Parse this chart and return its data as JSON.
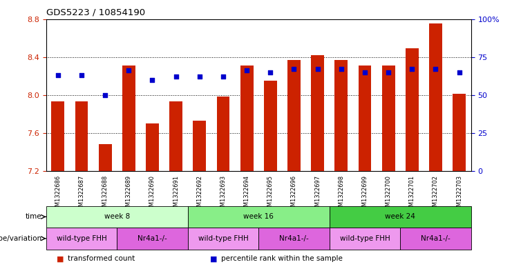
{
  "title": "GDS5223 / 10854190",
  "samples": [
    "GSM1322686",
    "GSM1322687",
    "GSM1322688",
    "GSM1322689",
    "GSM1322690",
    "GSM1322691",
    "GSM1322692",
    "GSM1322693",
    "GSM1322694",
    "GSM1322695",
    "GSM1322696",
    "GSM1322697",
    "GSM1322698",
    "GSM1322699",
    "GSM1322700",
    "GSM1322701",
    "GSM1322702",
    "GSM1322703"
  ],
  "bar_values": [
    7.93,
    7.93,
    7.48,
    8.31,
    7.7,
    7.93,
    7.73,
    7.98,
    8.31,
    8.15,
    8.37,
    8.42,
    8.37,
    8.31,
    8.31,
    8.49,
    8.75,
    8.01
  ],
  "blue_dot_values": [
    63,
    63,
    50,
    66,
    60,
    62,
    62,
    62,
    66,
    65,
    67,
    67,
    67,
    65,
    65,
    67,
    67,
    65
  ],
  "ylim_left": [
    7.2,
    8.8
  ],
  "ylim_right": [
    0,
    100
  ],
  "yticks_left": [
    7.2,
    7.6,
    8.0,
    8.4,
    8.8
  ],
  "yticks_right": [
    0,
    25,
    50,
    75,
    100
  ],
  "bar_color": "#cc2200",
  "dot_color": "#0000cc",
  "bar_bottom": 7.2,
  "time_groups": [
    {
      "label": "week 8",
      "start": 0,
      "end": 6,
      "color": "#ccffcc"
    },
    {
      "label": "week 16",
      "start": 6,
      "end": 12,
      "color": "#88ee88"
    },
    {
      "label": "week 24",
      "start": 12,
      "end": 18,
      "color": "#44cc44"
    }
  ],
  "genotype_groups": [
    {
      "label": "wild-type FHH",
      "start": 0,
      "end": 3,
      "color": "#ee99ee"
    },
    {
      "label": "Nr4a1-/-",
      "start": 3,
      "end": 6,
      "color": "#dd66dd"
    },
    {
      "label": "wild-type FHH",
      "start": 6,
      "end": 9,
      "color": "#ee99ee"
    },
    {
      "label": "Nr4a1-/-",
      "start": 9,
      "end": 12,
      "color": "#dd66dd"
    },
    {
      "label": "wild-type FHH",
      "start": 12,
      "end": 15,
      "color": "#ee99ee"
    },
    {
      "label": "Nr4a1-/-",
      "start": 15,
      "end": 18,
      "color": "#dd66dd"
    }
  ],
  "legend_items": [
    {
      "label": "transformed count",
      "color": "#cc2200"
    },
    {
      "label": "percentile rank within the sample",
      "color": "#0000cc"
    }
  ],
  "grid_yticks": [
    7.6,
    8.0,
    8.4
  ]
}
